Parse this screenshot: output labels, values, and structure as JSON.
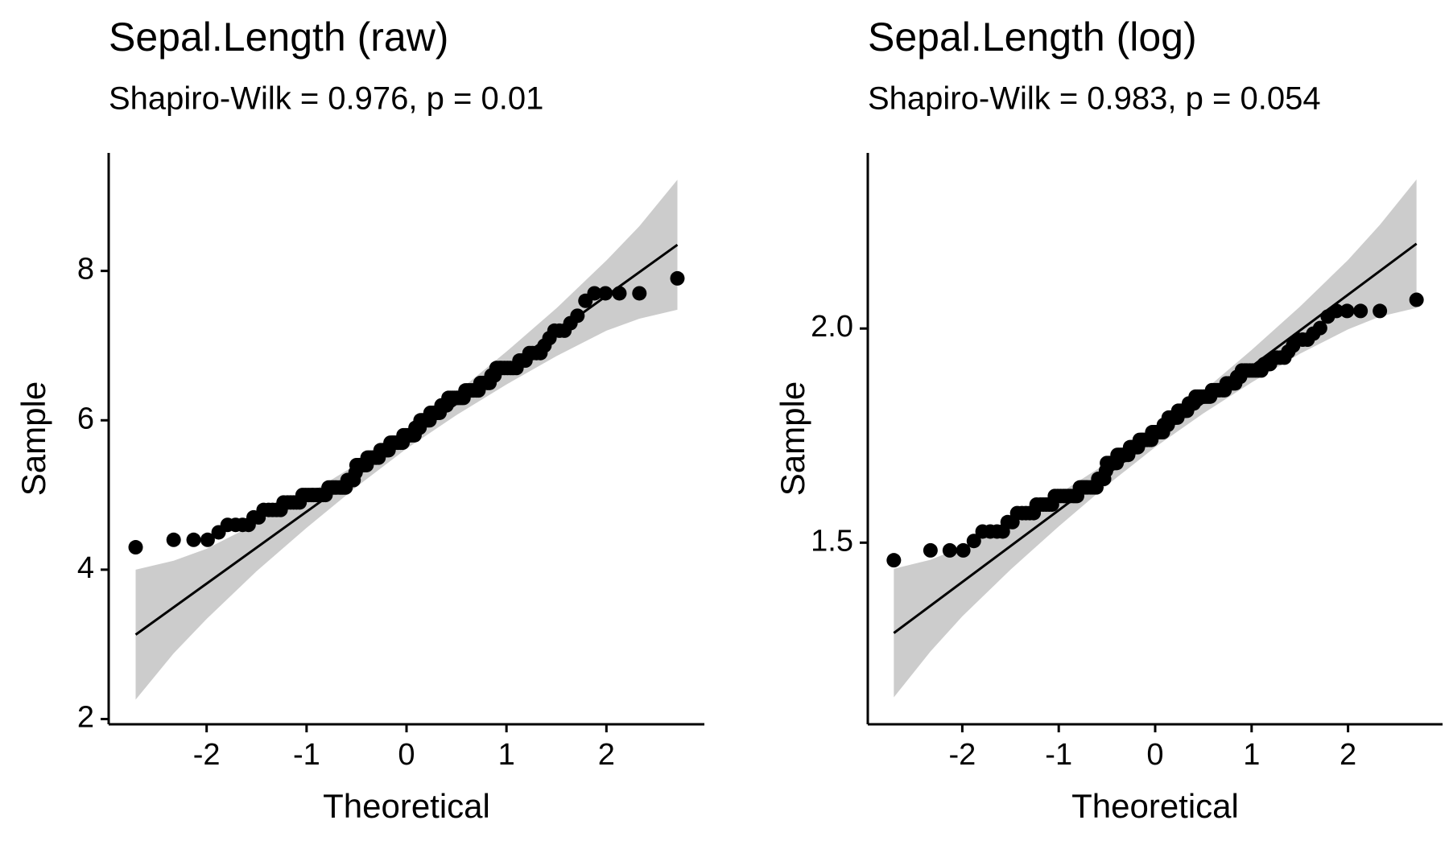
{
  "chart_data": [
    {
      "type": "qq",
      "title": "Sepal.Length (raw)",
      "subtitle": "Shapiro-Wilk = 0.976, p = 0.01",
      "xlabel": "Theoretical",
      "ylabel": "Sample",
      "color": "#000000",
      "band_color": "#cccccc",
      "xlim": [
        -2.98,
        2.98
      ],
      "ylim": [
        1.93,
        9.58
      ],
      "xticks": [
        -2,
        -1,
        0,
        1,
        2
      ],
      "yticks": [
        2,
        4,
        6,
        8
      ],
      "x": [
        -2.71,
        -2.33,
        -2.13,
        -1.99,
        -1.88,
        -1.79,
        -1.71,
        -1.64,
        -1.58,
        -1.53,
        -1.48,
        -1.43,
        -1.38,
        -1.34,
        -1.3,
        -1.26,
        -1.23,
        -1.19,
        -1.16,
        -1.13,
        -1.1,
        -1.07,
        -1.04,
        -1.01,
        -0.98,
        -0.95,
        -0.93,
        -0.9,
        -0.88,
        -0.85,
        -0.83,
        -0.81,
        -0.78,
        -0.76,
        -0.74,
        -0.72,
        -0.7,
        -0.67,
        -0.65,
        -0.63,
        -0.61,
        -0.59,
        -0.57,
        -0.55,
        -0.53,
        -0.51,
        -0.5,
        -0.48,
        -0.46,
        -0.44,
        -0.42,
        -0.4,
        -0.39,
        -0.37,
        -0.35,
        -0.33,
        -0.31,
        -0.3,
        -0.28,
        -0.26,
        -0.24,
        -0.23,
        -0.21,
        -0.19,
        -0.18,
        -0.16,
        -0.14,
        -0.13,
        -0.11,
        -0.09,
        -0.08,
        -0.06,
        -0.04,
        -0.03,
        -0.01,
        0.01,
        0.03,
        0.04,
        0.06,
        0.08,
        0.09,
        0.11,
        0.13,
        0.14,
        0.16,
        0.18,
        0.19,
        0.21,
        0.23,
        0.24,
        0.26,
        0.28,
        0.3,
        0.31,
        0.33,
        0.35,
        0.37,
        0.39,
        0.4,
        0.42,
        0.44,
        0.46,
        0.48,
        0.5,
        0.51,
        0.53,
        0.55,
        0.57,
        0.59,
        0.61,
        0.63,
        0.65,
        0.67,
        0.7,
        0.72,
        0.74,
        0.76,
        0.78,
        0.81,
        0.83,
        0.85,
        0.88,
        0.9,
        0.93,
        0.95,
        0.98,
        1.01,
        1.04,
        1.07,
        1.1,
        1.13,
        1.16,
        1.19,
        1.23,
        1.26,
        1.3,
        1.34,
        1.38,
        1.43,
        1.48,
        1.53,
        1.58,
        1.64,
        1.71,
        1.79,
        1.88,
        1.99,
        2.13,
        2.33,
        2.71
      ],
      "values": [
        4.3,
        4.4,
        4.4,
        4.4,
        4.5,
        4.6,
        4.6,
        4.6,
        4.6,
        4.7,
        4.7,
        4.8,
        4.8,
        4.8,
        4.8,
        4.8,
        4.9,
        4.9,
        4.9,
        4.9,
        4.9,
        4.9,
        5.0,
        5.0,
        5.0,
        5.0,
        5.0,
        5.0,
        5.0,
        5.0,
        5.0,
        5.0,
        5.1,
        5.1,
        5.1,
        5.1,
        5.1,
        5.1,
        5.1,
        5.1,
        5.1,
        5.2,
        5.2,
        5.2,
        5.2,
        5.3,
        5.4,
        5.4,
        5.4,
        5.4,
        5.4,
        5.4,
        5.5,
        5.5,
        5.5,
        5.5,
        5.5,
        5.5,
        5.5,
        5.6,
        5.6,
        5.6,
        5.6,
        5.6,
        5.6,
        5.7,
        5.7,
        5.7,
        5.7,
        5.7,
        5.7,
        5.7,
        5.7,
        5.8,
        5.8,
        5.8,
        5.8,
        5.8,
        5.8,
        5.8,
        5.9,
        5.9,
        5.9,
        6.0,
        6.0,
        6.0,
        6.0,
        6.0,
        6.0,
        6.1,
        6.1,
        6.1,
        6.1,
        6.1,
        6.1,
        6.2,
        6.2,
        6.2,
        6.2,
        6.3,
        6.3,
        6.3,
        6.3,
        6.3,
        6.3,
        6.3,
        6.3,
        6.3,
        6.4,
        6.4,
        6.4,
        6.4,
        6.4,
        6.4,
        6.4,
        6.5,
        6.5,
        6.5,
        6.5,
        6.5,
        6.6,
        6.6,
        6.7,
        6.7,
        6.7,
        6.7,
        6.7,
        6.7,
        6.7,
        6.7,
        6.8,
        6.8,
        6.8,
        6.9,
        6.9,
        6.9,
        6.9,
        7.0,
        7.1,
        7.2,
        7.2,
        7.2,
        7.3,
        7.4,
        7.6,
        7.7,
        7.7,
        7.7,
        7.7,
        7.9
      ],
      "reference_line": {
        "x": [
          -2.71,
          2.71
        ],
        "y": [
          3.13,
          8.35
        ]
      },
      "band": {
        "x": [
          -2.71,
          -2.33,
          -2,
          -1.5,
          -1,
          -0.5,
          0,
          0.5,
          1,
          1.5,
          2,
          2.33,
          2.71
        ],
        "lower": [
          2.26,
          2.88,
          3.34,
          3.98,
          4.56,
          5.11,
          5.62,
          6.07,
          6.48,
          6.86,
          7.2,
          7.36,
          7.48
        ],
        "upper": [
          4.0,
          4.12,
          4.28,
          4.62,
          5.0,
          5.41,
          5.86,
          6.37,
          6.92,
          7.5,
          8.14,
          8.6,
          9.22
        ]
      }
    },
    {
      "type": "qq",
      "title": "Sepal.Length (log)",
      "subtitle": "Shapiro-Wilk = 0.983, p = 0.054",
      "xlabel": "Theoretical",
      "ylabel": "Sample",
      "color": "#000000",
      "band_color": "#cccccc",
      "xlim": [
        -2.98,
        2.98
      ],
      "ylim": [
        1.076,
        2.41
      ],
      "xticks": [
        -2,
        -1,
        0,
        1,
        2
      ],
      "yticks": [
        1.5,
        {
          "value": 2,
          "label": "2.0"
        }
      ],
      "x": [
        -2.71,
        -2.33,
        -2.13,
        -1.99,
        -1.88,
        -1.79,
        -1.71,
        -1.64,
        -1.58,
        -1.53,
        -1.48,
        -1.43,
        -1.38,
        -1.34,
        -1.3,
        -1.26,
        -1.23,
        -1.19,
        -1.16,
        -1.13,
        -1.1,
        -1.07,
        -1.04,
        -1.01,
        -0.98,
        -0.95,
        -0.93,
        -0.9,
        -0.88,
        -0.85,
        -0.83,
        -0.81,
        -0.78,
        -0.76,
        -0.74,
        -0.72,
        -0.7,
        -0.67,
        -0.65,
        -0.63,
        -0.61,
        -0.59,
        -0.57,
        -0.55,
        -0.53,
        -0.51,
        -0.5,
        -0.48,
        -0.46,
        -0.44,
        -0.42,
        -0.4,
        -0.39,
        -0.37,
        -0.35,
        -0.33,
        -0.31,
        -0.3,
        -0.28,
        -0.26,
        -0.24,
        -0.23,
        -0.21,
        -0.19,
        -0.18,
        -0.16,
        -0.14,
        -0.13,
        -0.11,
        -0.09,
        -0.08,
        -0.06,
        -0.04,
        -0.03,
        -0.01,
        0.01,
        0.03,
        0.04,
        0.06,
        0.08,
        0.09,
        0.11,
        0.13,
        0.14,
        0.16,
        0.18,
        0.19,
        0.21,
        0.23,
        0.24,
        0.26,
        0.28,
        0.3,
        0.31,
        0.33,
        0.35,
        0.37,
        0.39,
        0.4,
        0.42,
        0.44,
        0.46,
        0.48,
        0.5,
        0.51,
        0.53,
        0.55,
        0.57,
        0.59,
        0.61,
        0.63,
        0.65,
        0.67,
        0.7,
        0.72,
        0.74,
        0.76,
        0.78,
        0.81,
        0.83,
        0.85,
        0.88,
        0.9,
        0.93,
        0.95,
        0.98,
        1.01,
        1.04,
        1.07,
        1.1,
        1.13,
        1.16,
        1.19,
        1.23,
        1.26,
        1.3,
        1.34,
        1.38,
        1.43,
        1.48,
        1.53,
        1.58,
        1.64,
        1.71,
        1.79,
        1.88,
        1.99,
        2.13,
        2.33,
        2.71
      ],
      "values": [
        1.459,
        1.482,
        1.482,
        1.482,
        1.504,
        1.526,
        1.526,
        1.526,
        1.526,
        1.548,
        1.548,
        1.569,
        1.569,
        1.569,
        1.569,
        1.569,
        1.589,
        1.589,
        1.589,
        1.589,
        1.589,
        1.589,
        1.609,
        1.609,
        1.609,
        1.609,
        1.609,
        1.609,
        1.609,
        1.609,
        1.609,
        1.609,
        1.629,
        1.629,
        1.629,
        1.629,
        1.629,
        1.629,
        1.629,
        1.629,
        1.629,
        1.649,
        1.649,
        1.649,
        1.649,
        1.668,
        1.686,
        1.686,
        1.686,
        1.686,
        1.686,
        1.686,
        1.705,
        1.705,
        1.705,
        1.705,
        1.705,
        1.705,
        1.705,
        1.723,
        1.723,
        1.723,
        1.723,
        1.723,
        1.723,
        1.74,
        1.74,
        1.74,
        1.74,
        1.74,
        1.74,
        1.74,
        1.74,
        1.758,
        1.758,
        1.758,
        1.758,
        1.758,
        1.758,
        1.758,
        1.775,
        1.775,
        1.775,
        1.792,
        1.792,
        1.792,
        1.792,
        1.792,
        1.792,
        1.808,
        1.808,
        1.808,
        1.808,
        1.808,
        1.808,
        1.825,
        1.825,
        1.825,
        1.825,
        1.841,
        1.841,
        1.841,
        1.841,
        1.841,
        1.841,
        1.841,
        1.841,
        1.841,
        1.856,
        1.856,
        1.856,
        1.856,
        1.856,
        1.856,
        1.856,
        1.872,
        1.872,
        1.872,
        1.872,
        1.872,
        1.887,
        1.887,
        1.902,
        1.902,
        1.902,
        1.902,
        1.902,
        1.902,
        1.902,
        1.902,
        1.917,
        1.917,
        1.917,
        1.932,
        1.932,
        1.932,
        1.932,
        1.946,
        1.96,
        1.974,
        1.974,
        1.974,
        1.988,
        2.001,
        2.028,
        2.041,
        2.041,
        2.041,
        2.041,
        2.067
      ],
      "reference_line": {
        "x": [
          -2.71,
          2.71
        ],
        "y": [
          1.289,
          2.198
        ]
      },
      "band": {
        "x": [
          -2.71,
          -2.33,
          -2,
          -1.5,
          -1,
          -0.5,
          0,
          0.5,
          1,
          1.5,
          2,
          2.33,
          2.71
        ],
        "lower": [
          1.139,
          1.246,
          1.328,
          1.437,
          1.538,
          1.634,
          1.723,
          1.802,
          1.874,
          1.941,
          1.998,
          2.028,
          2.048
        ],
        "upper": [
          1.439,
          1.46,
          1.49,
          1.547,
          1.614,
          1.686,
          1.765,
          1.854,
          1.95,
          2.051,
          2.16,
          2.242,
          2.348
        ]
      }
    }
  ]
}
